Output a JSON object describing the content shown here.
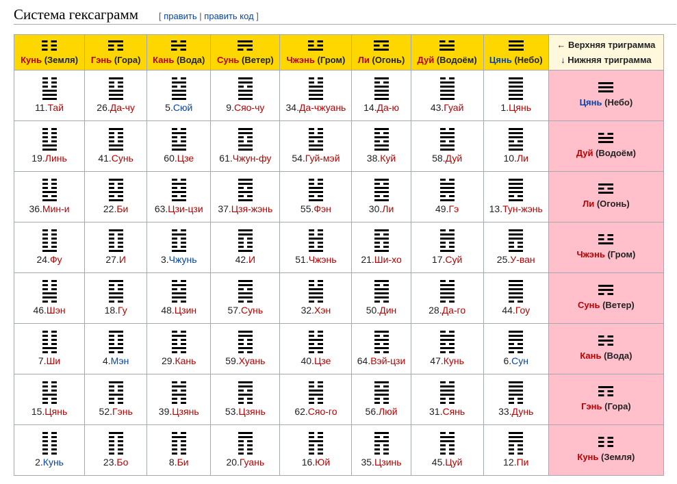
{
  "heading": {
    "title": "Система гексаграмм",
    "edit_open": "[",
    "edit_label": "править",
    "edit_sep": "|",
    "edit_code_label": "править код",
    "edit_close": "]"
  },
  "corner": {
    "upper_label": "← Верхняя триграмма",
    "lower_label": "↓ Нижняя триграмма"
  },
  "colors": {
    "header": "#ffd700",
    "corner": "#fff8dc",
    "row_header": "#ffc0cb",
    "link_red": "#ba0000",
    "link_blue": "#0645ad"
  },
  "columns": [
    {
      "name": "Кунь",
      "paren": "(Земля)",
      "color": "red",
      "lines": [
        0,
        0,
        0
      ]
    },
    {
      "name": "Гэнь",
      "paren": "(Гора)",
      "color": "red",
      "lines": [
        1,
        0,
        0
      ]
    },
    {
      "name": "Кань",
      "paren": "(Вода)",
      "color": "red",
      "lines": [
        0,
        1,
        0
      ]
    },
    {
      "name": "Сунь",
      "paren": "(Ветер)",
      "color": "red",
      "lines": [
        1,
        1,
        0
      ]
    },
    {
      "name": "Чжэнь",
      "paren": "(Гром)",
      "color": "red",
      "lines": [
        0,
        0,
        1
      ]
    },
    {
      "name": "Ли",
      "paren": "(Огонь)",
      "color": "red",
      "lines": [
        1,
        0,
        1
      ]
    },
    {
      "name": "Дуй",
      "paren": "(Водоём)",
      "color": "red",
      "lines": [
        0,
        1,
        1
      ]
    },
    {
      "name": "Цянь",
      "paren": "(Небо)",
      "color": "blue",
      "lines": [
        1,
        1,
        1
      ]
    }
  ],
  "rows": [
    {
      "name": "Цянь",
      "paren": "(Небо)",
      "color": "blue",
      "lines": [
        1,
        1,
        1
      ],
      "cells": [
        {
          "num": "11",
          "name": "Тай",
          "color": "red"
        },
        {
          "num": "26",
          "name": "Да-чу",
          "color": "red"
        },
        {
          "num": "5",
          "name": "Сюй",
          "color": "blue"
        },
        {
          "num": "9",
          "name": "Сяо-чу",
          "color": "red"
        },
        {
          "num": "34",
          "name": "Да-чжуань",
          "color": "red"
        },
        {
          "num": "14",
          "name": "Да-ю",
          "color": "red"
        },
        {
          "num": "43",
          "name": "Гуай",
          "color": "red"
        },
        {
          "num": "1",
          "name": "Цянь",
          "color": "red"
        }
      ]
    },
    {
      "name": "Дуй",
      "paren": "(Водоём)",
      "color": "red",
      "lines": [
        0,
        1,
        1
      ],
      "cells": [
        {
          "num": "19",
          "name": "Линь",
          "color": "red"
        },
        {
          "num": "41",
          "name": "Сунь",
          "color": "red"
        },
        {
          "num": "60",
          "name": "Цзе",
          "color": "red"
        },
        {
          "num": "61",
          "name": "Чжун-фу",
          "color": "red"
        },
        {
          "num": "54",
          "name": "Гуй-мэй",
          "color": "red"
        },
        {
          "num": "38",
          "name": "Куй",
          "color": "red"
        },
        {
          "num": "58",
          "name": "Дуй",
          "color": "red"
        },
        {
          "num": "10",
          "name": "Ли",
          "color": "red"
        }
      ]
    },
    {
      "name": "Ли",
      "paren": "(Огонь)",
      "color": "red",
      "lines": [
        1,
        0,
        1
      ],
      "cells": [
        {
          "num": "36",
          "name": "Мин-и",
          "color": "red"
        },
        {
          "num": "22",
          "name": "Би",
          "color": "red"
        },
        {
          "num": "63",
          "name": "Цзи-цзи",
          "color": "red"
        },
        {
          "num": "37",
          "name": "Цзя-жэнь",
          "color": "red"
        },
        {
          "num": "55",
          "name": "Фэн",
          "color": "red"
        },
        {
          "num": "30",
          "name": "Ли",
          "color": "red"
        },
        {
          "num": "49",
          "name": "Гэ",
          "color": "red"
        },
        {
          "num": "13",
          "name": "Тун-жэнь",
          "color": "red"
        }
      ]
    },
    {
      "name": "Чжэнь",
      "paren": "(Гром)",
      "color": "red",
      "lines": [
        0,
        0,
        1
      ],
      "cells": [
        {
          "num": "24",
          "name": "Фу",
          "color": "red"
        },
        {
          "num": "27",
          "name": "И",
          "color": "red"
        },
        {
          "num": "3",
          "name": "Чжунь",
          "color": "blue"
        },
        {
          "num": "42",
          "name": "И",
          "color": "red"
        },
        {
          "num": "51",
          "name": "Чжэнь",
          "color": "red"
        },
        {
          "num": "21",
          "name": "Ши-хо",
          "color": "red"
        },
        {
          "num": "17",
          "name": "Суй",
          "color": "red"
        },
        {
          "num": "25",
          "name": "У-ван",
          "color": "red"
        }
      ]
    },
    {
      "name": "Сунь",
      "paren": "(Ветер)",
      "color": "red",
      "lines": [
        1,
        1,
        0
      ],
      "cells": [
        {
          "num": "46",
          "name": "Шэн",
          "color": "red"
        },
        {
          "num": "18",
          "name": "Гу",
          "color": "red"
        },
        {
          "num": "48",
          "name": "Цзин",
          "color": "red"
        },
        {
          "num": "57",
          "name": "Сунь",
          "color": "red"
        },
        {
          "num": "32",
          "name": "Хэн",
          "color": "red"
        },
        {
          "num": "50",
          "name": "Дин",
          "color": "red"
        },
        {
          "num": "28",
          "name": "Да-го",
          "color": "red"
        },
        {
          "num": "44",
          "name": "Гоу",
          "color": "red"
        }
      ]
    },
    {
      "name": "Кань",
      "paren": "(Вода)",
      "color": "red",
      "lines": [
        0,
        1,
        0
      ],
      "cells": [
        {
          "num": "7",
          "name": "Ши",
          "color": "red"
        },
        {
          "num": "4",
          "name": "Мэн",
          "color": "blue"
        },
        {
          "num": "29",
          "name": "Кань",
          "color": "red"
        },
        {
          "num": "59",
          "name": "Хуань",
          "color": "red"
        },
        {
          "num": "40",
          "name": "Цзе",
          "color": "red"
        },
        {
          "num": "64",
          "name": "Вэй-цзи",
          "color": "red"
        },
        {
          "num": "47",
          "name": "Кунь",
          "color": "red"
        },
        {
          "num": "6",
          "name": "Сун",
          "color": "blue"
        }
      ]
    },
    {
      "name": "Гэнь",
      "paren": "(Гора)",
      "color": "red",
      "lines": [
        1,
        0,
        0
      ],
      "cells": [
        {
          "num": "15",
          "name": "Цянь",
          "color": "red"
        },
        {
          "num": "52",
          "name": "Гэнь",
          "color": "red"
        },
        {
          "num": "39",
          "name": "Цзянь",
          "color": "red"
        },
        {
          "num": "53",
          "name": "Цзянь",
          "color": "red"
        },
        {
          "num": "62",
          "name": "Сяо-го",
          "color": "red"
        },
        {
          "num": "56",
          "name": "Люй",
          "color": "red"
        },
        {
          "num": "31",
          "name": "Сянь",
          "color": "red"
        },
        {
          "num": "33",
          "name": "Дунь",
          "color": "red"
        }
      ]
    },
    {
      "name": "Кунь",
      "paren": "(Земля)",
      "color": "red",
      "lines": [
        0,
        0,
        0
      ],
      "cells": [
        {
          "num": "2",
          "name": "Кунь",
          "color": "blue"
        },
        {
          "num": "23",
          "name": "Бо",
          "color": "red"
        },
        {
          "num": "8",
          "name": "Би",
          "color": "red"
        },
        {
          "num": "20",
          "name": "Гуань",
          "color": "red"
        },
        {
          "num": "16",
          "name": "Юй",
          "color": "red"
        },
        {
          "num": "35",
          "name": "Цзинь",
          "color": "red"
        },
        {
          "num": "45",
          "name": "Цуй",
          "color": "red"
        },
        {
          "num": "12",
          "name": "Пи",
          "color": "red"
        }
      ]
    }
  ]
}
